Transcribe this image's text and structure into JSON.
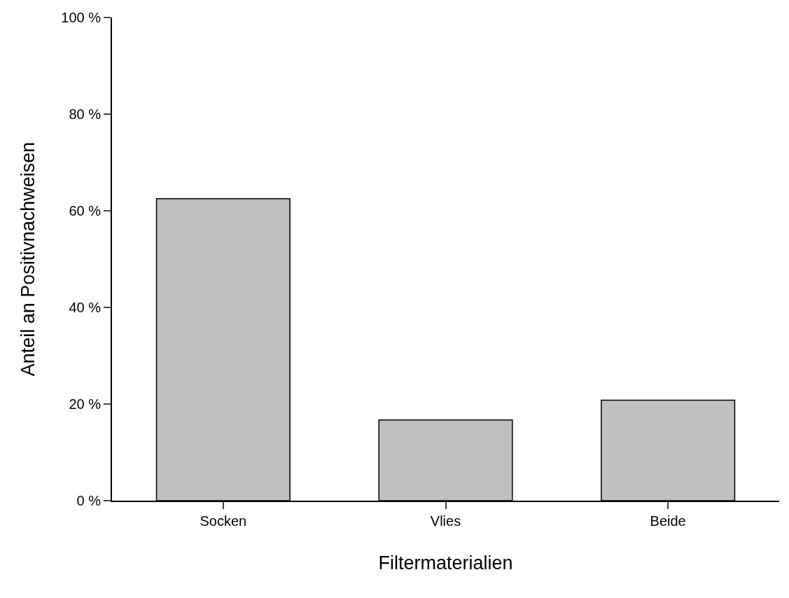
{
  "chart_data": {
    "type": "bar",
    "xlabel": "Filtermaterialien",
    "ylabel": "Anteil an Positivnachweisen",
    "categories": [
      "Socken",
      "Vlies",
      "Beide"
    ],
    "values": [
      62.5,
      16.7,
      20.8
    ],
    "color": "#c0c0c0",
    "ylim": [
      0,
      100
    ],
    "yticks": [
      {
        "value": 0,
        "label": "0 %"
      },
      {
        "value": 20,
        "label": "20 %"
      },
      {
        "value": 40,
        "label": "40 %"
      },
      {
        "value": 60,
        "label": "60 %"
      },
      {
        "value": 80,
        "label": "80 %"
      },
      {
        "value": 100,
        "label": "100 %"
      }
    ],
    "grid": false
  }
}
